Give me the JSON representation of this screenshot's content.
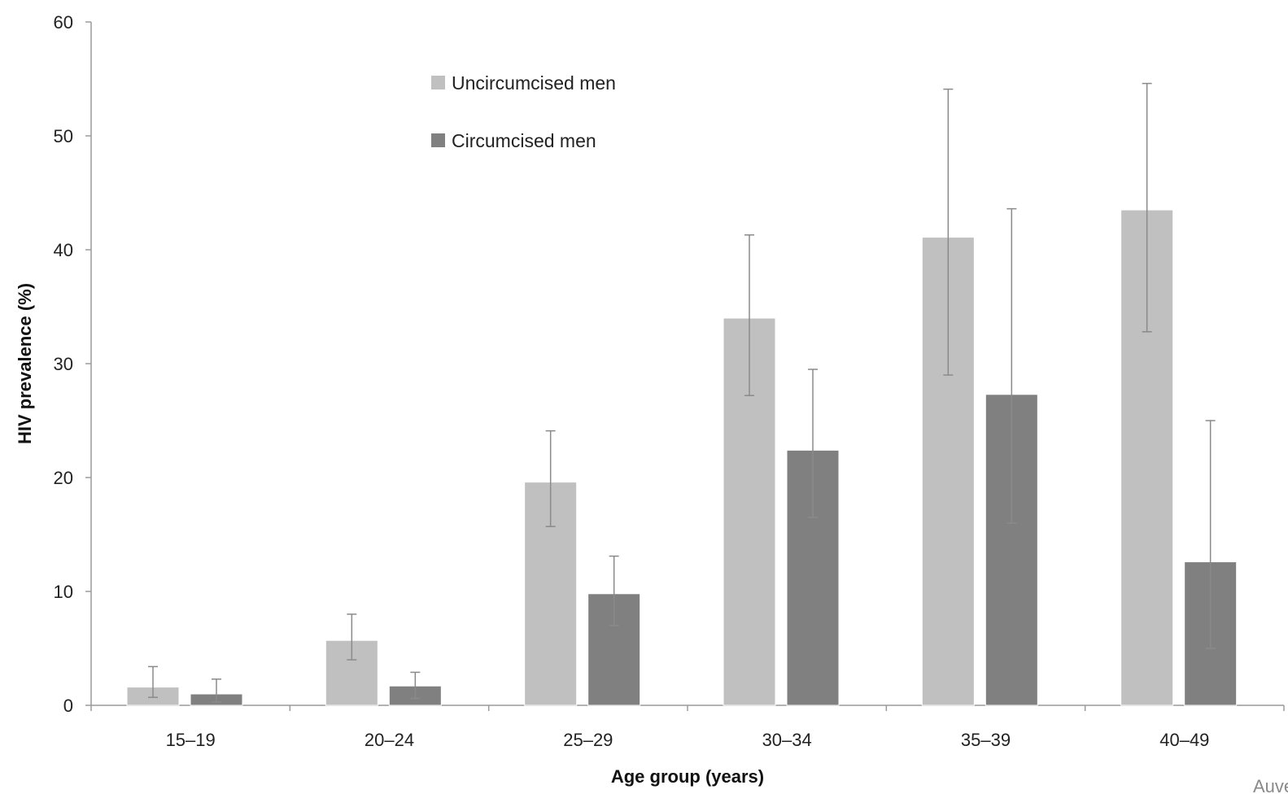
{
  "chart_data": {
    "type": "bar",
    "title": "",
    "xlabel": "Age group (years)",
    "ylabel": "HIV prevalence (%)",
    "ylim": [
      0,
      60
    ],
    "yticks": [
      0,
      10,
      20,
      30,
      40,
      50,
      60
    ],
    "categories": [
      "15–19",
      "20–24",
      "25–29",
      "30–34",
      "35–39",
      "40–49"
    ],
    "series": [
      {
        "name": "Uncircumcised men",
        "color": "#c0c0c0",
        "values": [
          1.6,
          5.7,
          19.6,
          34.0,
          41.1,
          43.5
        ],
        "error_low": [
          0.7,
          4.0,
          15.7,
          27.2,
          29.0,
          32.8
        ],
        "error_high": [
          3.4,
          8.0,
          24.1,
          41.3,
          54.1,
          54.6
        ]
      },
      {
        "name": "Circumcised men",
        "color": "#808080",
        "values": [
          1.0,
          1.7,
          9.8,
          22.4,
          27.3,
          12.6
        ],
        "error_low": [
          0.3,
          0.6,
          7.0,
          16.5,
          16.0,
          5.0
        ],
        "error_high": [
          2.3,
          2.9,
          13.1,
          29.5,
          43.6,
          25.0
        ]
      }
    ],
    "grid": false,
    "legend": "top-center",
    "source_note": "Auvert et al. Pl"
  }
}
